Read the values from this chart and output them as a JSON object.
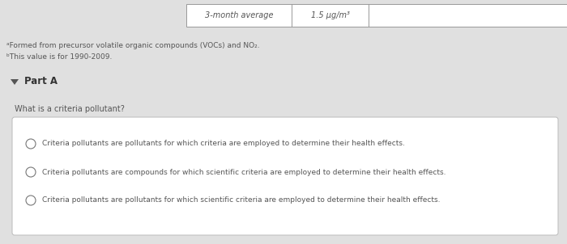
{
  "bg_color": "#e0e0e0",
  "table_header_col1": "3-month average",
  "table_header_col2": "1.5 μg/m³",
  "footnote1": "ᵃFormed from precursor volatile organic compounds (VOCs) and NO₂.",
  "footnote2": "ᵇThis value is for 1990-2009.",
  "part_label": "Part A",
  "question": "What is a criteria pollutant?",
  "options": [
    "Criteria pollutants are pollutants for which criteria are employed to determine their health effects.",
    "Criteria pollutants are compounds for which scientific criteria are employed to determine their health effects.",
    "Criteria pollutants are pollutants for which scientific criteria are employed to determine their health effects."
  ],
  "text_color": "#555555",
  "table_border_color": "#999999",
  "box_border_color": "#bbbbbb",
  "circle_color": "#777777",
  "triangle_color": "#555555"
}
